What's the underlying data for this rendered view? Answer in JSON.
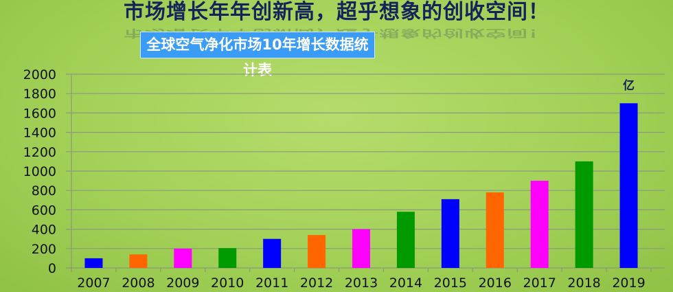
{
  "header": {
    "title": "市场增长年年创新高，超乎想象的创收空间！",
    "subtitle": "全球空气净化市场10年增长数据统计表"
  },
  "chart_data": {
    "type": "bar",
    "title": "全球空气净化市场10年增长数据统计表",
    "unit_label": "亿",
    "categories": [
      "2007",
      "2008",
      "2009",
      "2010",
      "2011",
      "2012",
      "2013",
      "2014",
      "2015",
      "2016",
      "2017",
      "2018",
      "2019"
    ],
    "values": [
      100,
      140,
      200,
      205,
      300,
      340,
      400,
      580,
      710,
      780,
      900,
      1100,
      1700
    ],
    "colors": [
      "#0000ff",
      "#ff6600",
      "#ff00ff",
      "#009900",
      "#0000ff",
      "#ff6600",
      "#ff00ff",
      "#009900",
      "#0000ff",
      "#ff6600",
      "#ff00ff",
      "#009900",
      "#0000ff"
    ],
    "ylim": [
      0,
      2000
    ],
    "yticks": [
      "0",
      "200",
      "400",
      "600",
      "800",
      "1000",
      "1200",
      "1400",
      "1600",
      "1800",
      "2000"
    ],
    "grid": true,
    "xlabel": "",
    "ylabel": ""
  }
}
